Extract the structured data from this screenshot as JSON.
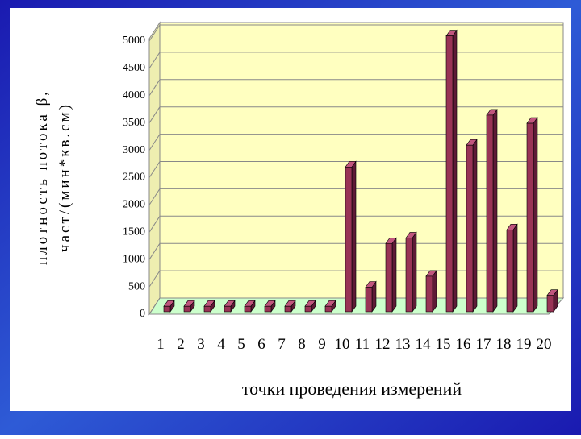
{
  "chart_data": {
    "type": "bar",
    "y_label_lines": [
      "плотность потока β,",
      "част/(мин*кв.см)"
    ],
    "x_label": "точки проведения измерений",
    "categories": [
      "1",
      "2",
      "3",
      "4",
      "5",
      "6",
      "7",
      "8",
      "9",
      "10",
      "11",
      "12",
      "13",
      "14",
      "15",
      "16",
      "17",
      "18",
      "19",
      "20"
    ],
    "values": [
      100,
      100,
      100,
      100,
      100,
      100,
      100,
      100,
      100,
      2650,
      450,
      1250,
      1350,
      650,
      5050,
      3050,
      3600,
      1500,
      3450,
      300
    ],
    "color": "#993355",
    "ylim": [
      0,
      5000
    ],
    "yticks": [
      0,
      500,
      1000,
      1500,
      2000,
      2500,
      3000,
      3500,
      4000,
      4500,
      5000
    ],
    "grid": true
  }
}
